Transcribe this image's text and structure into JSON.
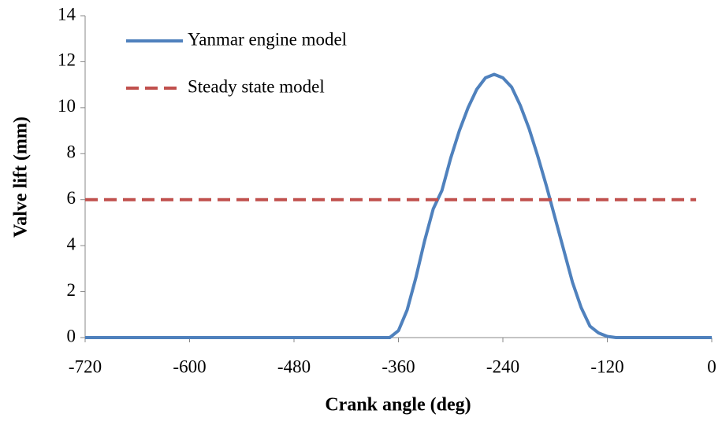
{
  "chart_data": {
    "type": "line",
    "x_label": "Crank angle (deg)",
    "y_label": "Valve lift (mm)",
    "xlim": [
      -720,
      0
    ],
    "xticks": [
      -720,
      -600,
      -480,
      -360,
      -240,
      -120,
      0
    ],
    "ylim": [
      0,
      14
    ],
    "yticks": [
      0,
      2,
      4,
      6,
      8,
      10,
      12,
      14
    ],
    "grid": false,
    "legend": "upper left",
    "series": [
      {
        "name": "Yanmar engine model",
        "color": "#4f81bd",
        "dash": false,
        "x": [
          -720,
          -370,
          -360,
          -350,
          -340,
          -330,
          -320,
          -310,
          -300,
          -290,
          -280,
          -270,
          -260,
          -250,
          -240,
          -230,
          -220,
          -210,
          -200,
          -190,
          -180,
          -170,
          -160,
          -150,
          -140,
          -130,
          -120,
          -110,
          0
        ],
        "values": [
          0,
          0,
          0.3,
          1.2,
          2.6,
          4.2,
          5.6,
          6.4,
          7.8,
          9.0,
          10.0,
          10.8,
          11.3,
          11.45,
          11.3,
          10.9,
          10.1,
          9.1,
          7.9,
          6.6,
          5.2,
          3.8,
          2.4,
          1.3,
          0.5,
          0.2,
          0.05,
          0,
          0
        ]
      },
      {
        "name": "Steady state model",
        "color": "#c0504d",
        "dash": true,
        "x": [
          -720,
          -18
        ],
        "values": [
          6,
          6
        ]
      }
    ]
  }
}
